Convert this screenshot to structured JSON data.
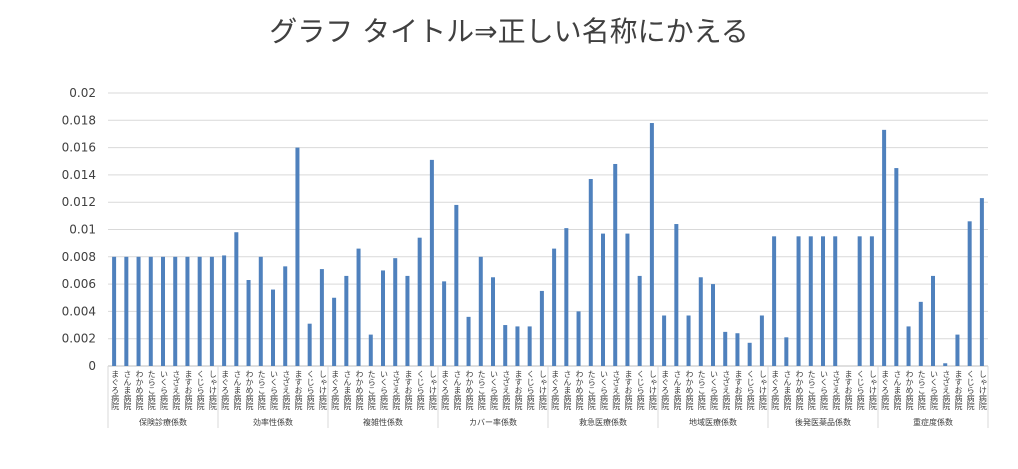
{
  "chart_data": {
    "type": "bar",
    "title": "グラフ タイトル⇒正しい名称にかえる",
    "ylim": [
      0,
      0.02
    ],
    "yticks": [
      "0",
      "0.002",
      "0.004",
      "0.006",
      "0.008",
      "0.01",
      "0.012",
      "0.014",
      "0.016",
      "0.018",
      "0.02"
    ],
    "grid": true,
    "bar_color": "#4f81bd",
    "hospitals": [
      "まぐろ病院",
      "さんま病院",
      "わかめ病院",
      "たらこ病院",
      "いくら病院",
      "さざえ病院",
      "ますお病院",
      "くじら病院",
      "しゃけ病院"
    ],
    "groups": [
      {
        "name": "保険診療係数",
        "values": [
          0.008,
          0.008,
          0.008,
          0.008,
          0.008,
          0.008,
          0.008,
          0.008,
          0.008
        ]
      },
      {
        "name": "効率性係数",
        "values": [
          0.0081,
          0.0098,
          0.0063,
          0.008,
          0.0056,
          0.0073,
          0.016,
          0.0031,
          0.0071
        ]
      },
      {
        "name": "複雑性係数",
        "values": [
          0.005,
          0.0066,
          0.0086,
          0.0023,
          0.007,
          0.0079,
          0.0066,
          0.0094,
          0.0151
        ]
      },
      {
        "name": "カバー率係数",
        "values": [
          0.0062,
          0.0118,
          0.0036,
          0.008,
          0.0065,
          0.003,
          0.0029,
          0.0029,
          0.0055
        ]
      },
      {
        "name": "救急医療係数",
        "values": [
          0.0086,
          0.0101,
          0.004,
          0.0137,
          0.0097,
          0.0148,
          0.0097,
          0.0066,
          0.0178
        ]
      },
      {
        "name": "地域医療係数",
        "values": [
          0.0037,
          0.0104,
          0.0037,
          0.0065,
          0.006,
          0.0025,
          0.0024,
          0.0017,
          0.0037
        ]
      },
      {
        "name": "後発医薬品係数",
        "values": [
          0.0095,
          0.0021,
          0.0095,
          0.0095,
          0.0095,
          0.0095,
          0.0,
          0.0095,
          0.0095
        ]
      },
      {
        "name": "重症度係数",
        "values": [
          0.0173,
          0.0145,
          0.0029,
          0.0047,
          0.0066,
          0.0002,
          0.0023,
          0.0106,
          0.0123
        ]
      }
    ]
  }
}
